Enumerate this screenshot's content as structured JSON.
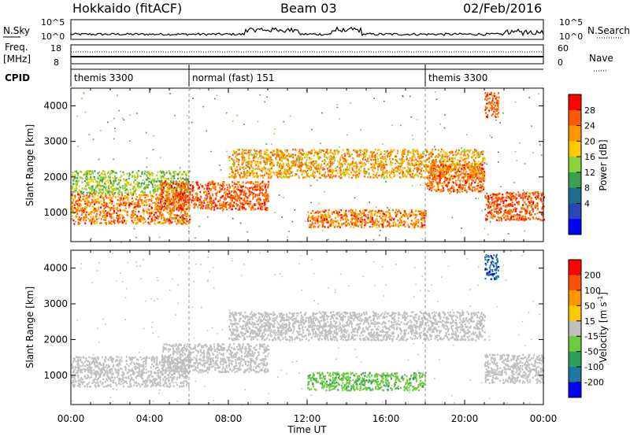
{
  "header": {
    "radar": "Hokkaido (fitACF)",
    "beam": "Beam 03",
    "date": "02/Feb/2016"
  },
  "nsky": {
    "label": "N.Sky",
    "ticks": [
      "10^5",
      "10^0"
    ],
    "right_ticks": [
      "10^5",
      "10^0"
    ],
    "right_label": "N.Search"
  },
  "freq": {
    "label": "Freq.",
    "unit": "[MHz]",
    "ticks": [
      "18",
      "8"
    ],
    "right_ticks": [
      "60",
      "0"
    ],
    "right_label": "Nave"
  },
  "cpid": {
    "label": "CPID",
    "modes": [
      {
        "start_hour": 0,
        "name": "themis 3300"
      },
      {
        "start_hour": 6,
        "name": "normal (fast) 151"
      },
      {
        "start_hour": 18,
        "name": "themis 3300"
      }
    ]
  },
  "chart_data": [
    {
      "type": "heatmap",
      "id": "power",
      "xlabel": "",
      "ylabel": "Slant Range [km]",
      "xlim": [
        0,
        24
      ],
      "ylim": [
        180,
        4500
      ],
      "yticks": [
        1000,
        2000,
        3000,
        4000
      ],
      "colorbar": {
        "label": "Power [dB]",
        "ticks": [
          "28",
          "24",
          "20",
          "16",
          "12",
          "8",
          "4"
        ],
        "colors": [
          "#ff0000",
          "#ff5a00",
          "#ff9600",
          "#ffc800",
          "#8cd23c",
          "#3ca050",
          "#1e6e8c",
          "#2846b4",
          "#0000ff"
        ]
      },
      "bands": [
        {
          "t": [
            0,
            6
          ],
          "r": [
            700,
            1550
          ],
          "range": [
            18,
            30
          ]
        },
        {
          "t": [
            0,
            6
          ],
          "r": [
            1550,
            2200
          ],
          "range": [
            10,
            18
          ]
        },
        {
          "t": [
            4.5,
            10
          ],
          "r": [
            1100,
            1900
          ],
          "range": [
            22,
            30
          ]
        },
        {
          "t": [
            8,
            21
          ],
          "r": [
            2000,
            2800
          ],
          "range": [
            14,
            28
          ]
        },
        {
          "t": [
            12,
            18
          ],
          "r": [
            600,
            1100
          ],
          "range": [
            18,
            30
          ]
        },
        {
          "t": [
            18,
            21
          ],
          "r": [
            1600,
            2400
          ],
          "range": [
            20,
            30
          ]
        },
        {
          "t": [
            21,
            24
          ],
          "r": [
            800,
            1600
          ],
          "range": [
            22,
            30
          ]
        },
        {
          "t": [
            21,
            21.7
          ],
          "r": [
            3700,
            4400
          ],
          "range": [
            22,
            30
          ]
        }
      ]
    },
    {
      "type": "heatmap",
      "id": "velocity",
      "xlabel": "Time UT",
      "ylabel": "Slant Range [km]",
      "xlim": [
        0,
        24
      ],
      "ylim": [
        180,
        4500
      ],
      "yticks": [
        1000,
        2000,
        3000,
        4000
      ],
      "xticks": [
        "00:00",
        "04:00",
        "08:00",
        "12:00",
        "16:00",
        "20:00",
        "00:00"
      ],
      "colorbar": {
        "label": "Velocity [m s^-1]",
        "ticks": [
          "200",
          "100",
          "50",
          "15",
          "-15",
          "-50",
          "-100",
          "-200"
        ],
        "colors": [
          "#ff0000",
          "#ff5000",
          "#ff9600",
          "#ffc800",
          "#c0c0c0",
          "#6ccc3c",
          "#2ea05a",
          "#1e78a0",
          "#0000ff"
        ]
      },
      "bands": [
        {
          "t": [
            0,
            6
          ],
          "r": [
            700,
            1550
          ],
          "range": [
            -15,
            15
          ]
        },
        {
          "t": [
            4.5,
            10
          ],
          "r": [
            1100,
            1900
          ],
          "range": [
            -15,
            15
          ]
        },
        {
          "t": [
            8,
            21
          ],
          "r": [
            2000,
            2800
          ],
          "range": [
            -15,
            15
          ]
        },
        {
          "t": [
            12,
            18
          ],
          "r": [
            600,
            1100
          ],
          "range": [
            -60,
            -15
          ]
        },
        {
          "t": [
            21,
            24
          ],
          "r": [
            800,
            1600
          ],
          "range": [
            -15,
            15
          ]
        },
        {
          "t": [
            21,
            21.7
          ],
          "r": [
            3700,
            4400
          ],
          "range": [
            -220,
            -150
          ]
        }
      ]
    }
  ]
}
